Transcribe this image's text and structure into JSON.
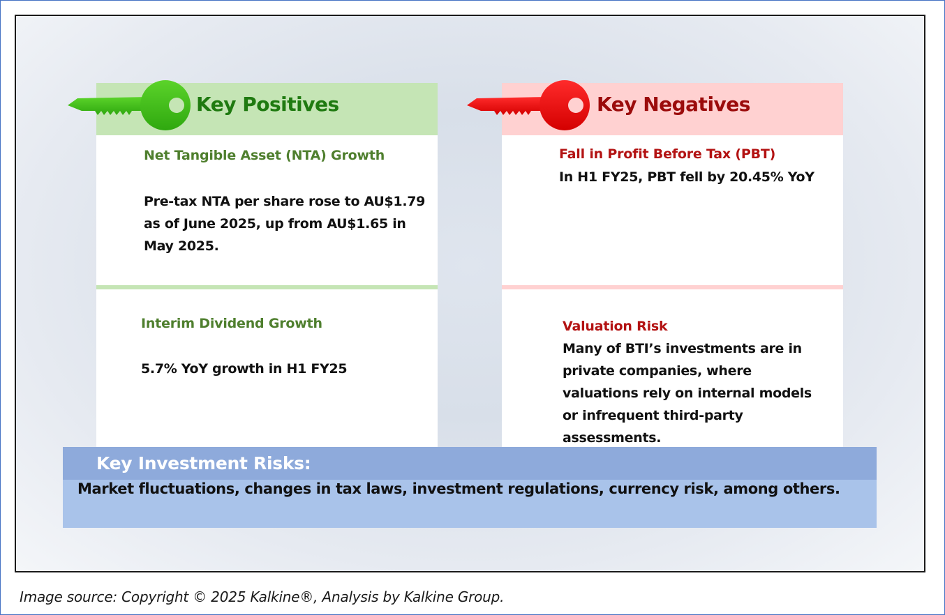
{
  "positives": {
    "title": "Key Positives",
    "accent_color": "#1f7a10",
    "band_color": "#c5e5b5",
    "items": [
      {
        "heading": "Net Tangible Asset (NTA) Growth",
        "lines": [
          "Pre-tax NTA per share rose to AU$1.79",
          "as of June 2025, up from AU$1.65 in",
          "May 2025."
        ]
      },
      {
        "heading": "Interim Dividend Growth",
        "lines": [
          "5.7% YoY growth in H1 FY25"
        ]
      }
    ]
  },
  "negatives": {
    "title": "Key Negatives",
    "accent_color": "#9b0b0b",
    "band_color": "#ffd1d1",
    "items": [
      {
        "heading": "Fall in Profit Before Tax (PBT)",
        "lines": [
          "In H1 FY25, PBT fell by 20.45% YoY"
        ]
      },
      {
        "heading": "Valuation Risk",
        "lines": [
          "Many of BTI’s investments are in",
          "private companies, where",
          "valuations rely on internal models",
          "or infrequent third-party",
          "assessments."
        ]
      }
    ]
  },
  "risks": {
    "title": "Key Investment Risks:",
    "text": "Market fluctuations, changes in tax laws, investment regulations, currency risk, among others."
  },
  "caption": "Image source: Copyright © 2025 Kalkine®, Analysis by Kalkine Group.",
  "icons": {
    "positive": "green-key-icon",
    "negative": "red-key-icon"
  }
}
